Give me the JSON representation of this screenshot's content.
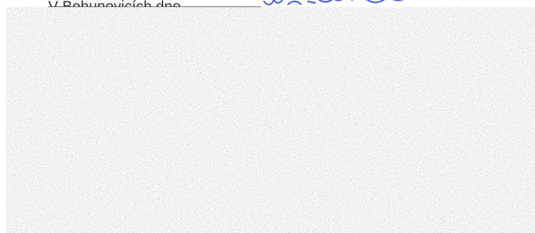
{
  "document": {
    "place_date_line": "V Bohunovicích dne"
  }
}
